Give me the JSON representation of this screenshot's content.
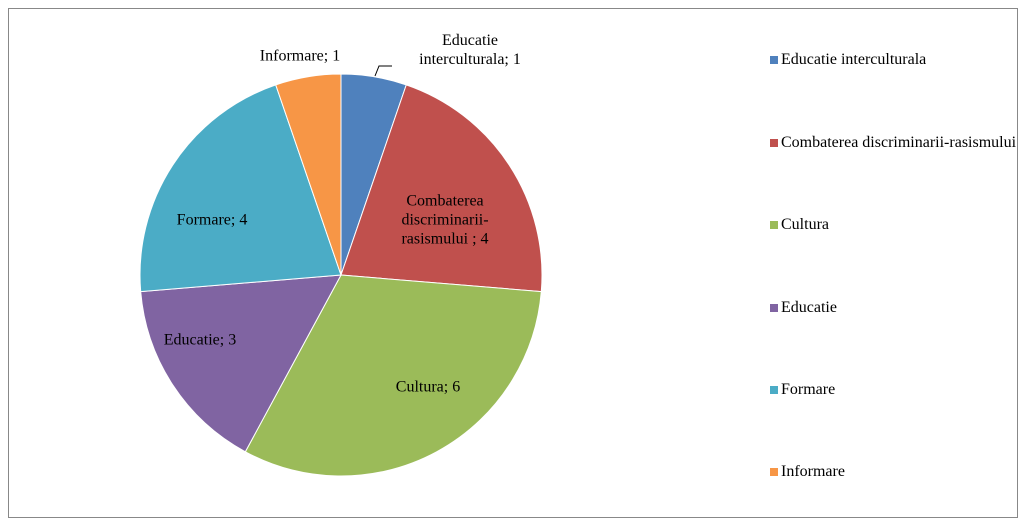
{
  "chart_data": {
    "type": "pie",
    "categories": [
      "Educatie interculturala",
      "Combaterea discriminarii-rasismului",
      "Cultura",
      "Educatie",
      "Formare",
      "Informare"
    ],
    "values": [
      1,
      4,
      6,
      3,
      4,
      1
    ],
    "value_labels": [
      "Educatie interculturala; 1",
      "Combaterea discriminarii-rasismului ; 4",
      "Cultura; 6",
      "Educatie; 3",
      "Formare; 4",
      "Informare; 1"
    ],
    "colors": [
      "#4f81bd",
      "#c0504d",
      "#9bbb59",
      "#8064a2",
      "#4bacc6",
      "#f79646"
    ],
    "legend": "right"
  }
}
